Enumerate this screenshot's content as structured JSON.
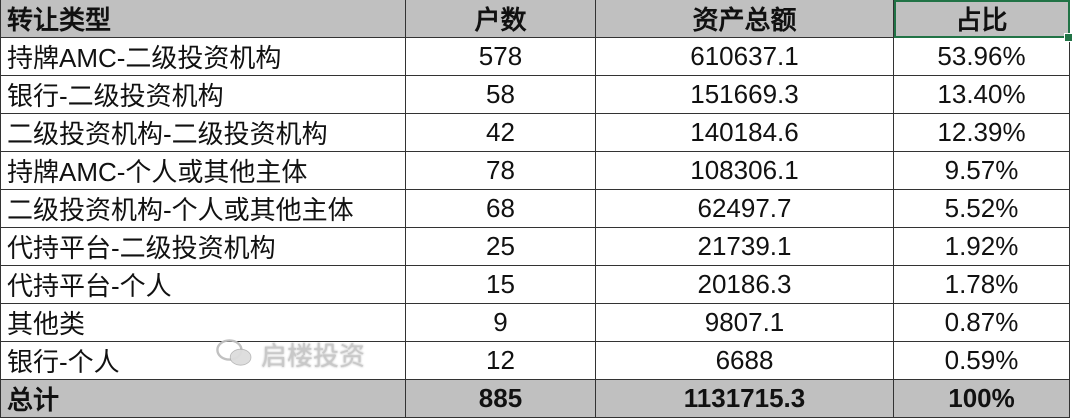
{
  "headers": [
    "转让类型",
    "户数",
    "资产总额",
    "占比"
  ],
  "rows": [
    [
      "持牌AMC-二级投资机构",
      "578",
      "610637.1",
      "53.96%"
    ],
    [
      "银行-二级投资机构",
      "58",
      "151669.3",
      "13.40%"
    ],
    [
      "二级投资机构-二级投资机构",
      "42",
      "140184.6",
      "12.39%"
    ],
    [
      "持牌AMC-个人或其他主体",
      "78",
      "108306.1",
      "9.57%"
    ],
    [
      "二级投资机构-个人或其他主体",
      "68",
      "62497.7",
      "5.52%"
    ],
    [
      "代持平台-二级投资机构",
      "25",
      "21739.1",
      "1.92%"
    ],
    [
      "代持平台-个人",
      "15",
      "20186.3",
      "1.78%"
    ],
    [
      "其他类",
      "9",
      "9807.1",
      "0.87%"
    ],
    [
      "银行-个人",
      "12",
      "6688",
      "0.59%"
    ]
  ],
  "total": [
    "总计",
    "885",
    "1131715.3",
    "100%"
  ],
  "watermark": "启楼投资",
  "colors": {
    "header_bg": "#c0c0c0",
    "selection": "#217346"
  }
}
